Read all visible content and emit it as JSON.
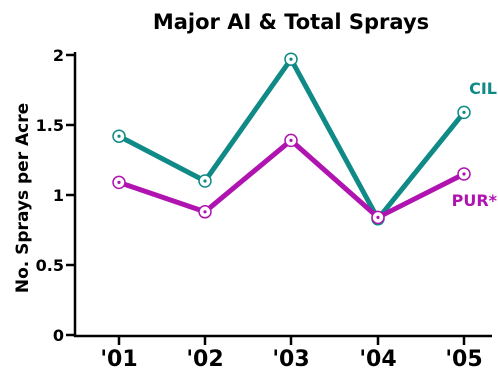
{
  "chart_data": {
    "type": "line",
    "title": "Major AI & Total Sprays",
    "xlabel": "",
    "ylabel": "No. Sprays per Acre",
    "categories": [
      "'01",
      "'02",
      "'03",
      "'04",
      "'05"
    ],
    "ylim": [
      0,
      2
    ],
    "yticks": [
      "0",
      "0.5",
      "1",
      "1.5",
      "2"
    ],
    "grid": false,
    "legend": "inline labels at right end of each line",
    "series": [
      {
        "name": "CIL",
        "color": "#0f8a86",
        "values": [
          1.42,
          1.1,
          1.97,
          0.83,
          1.59
        ]
      },
      {
        "name": "PUR*",
        "color": "#b014b0",
        "values": [
          1.09,
          0.88,
          1.39,
          0.84,
          1.15
        ]
      }
    ]
  }
}
